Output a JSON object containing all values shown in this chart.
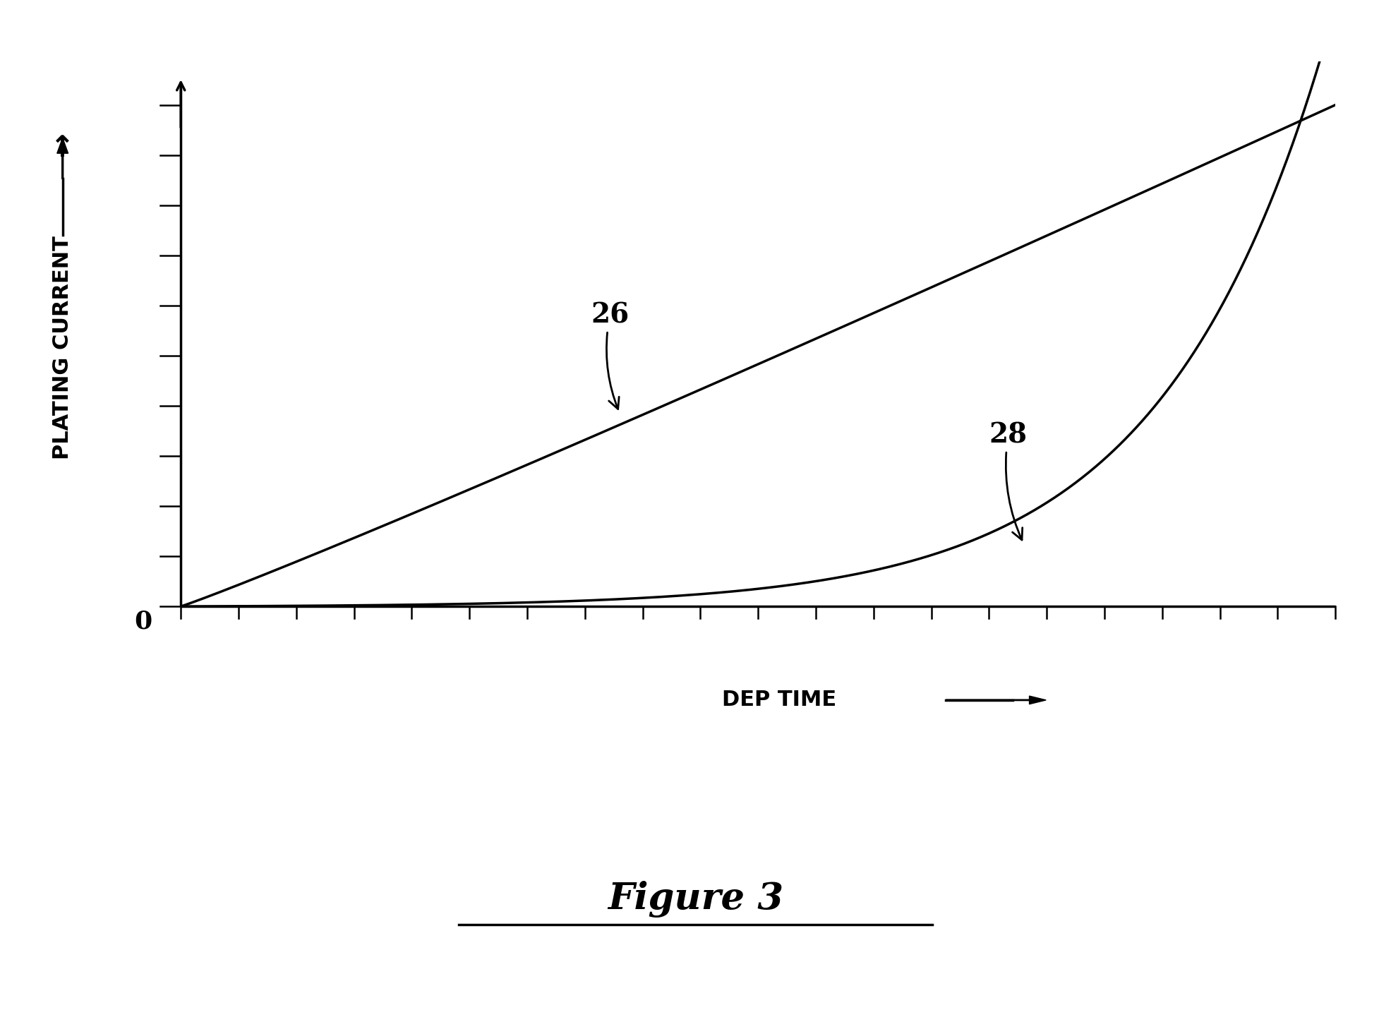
{
  "background_color": "#ffffff",
  "curve26_color": "#000000",
  "curve28_color": "#000000",
  "line_width": 2.5,
  "x_label": "DEP TIME",
  "y_label": "PLATING CURRENT",
  "zero_label": "0",
  "label_26": "26",
  "label_28": "28",
  "figure_caption": "Figure 3",
  "xlim": [
    0,
    1.0
  ],
  "ylim": [
    -0.05,
    1.0
  ],
  "tick_color": "#000000",
  "axis_color": "#000000",
  "n_yticks": 11,
  "n_xticks": 21,
  "ytick_max": 0.92,
  "xtick_max": 1.0
}
